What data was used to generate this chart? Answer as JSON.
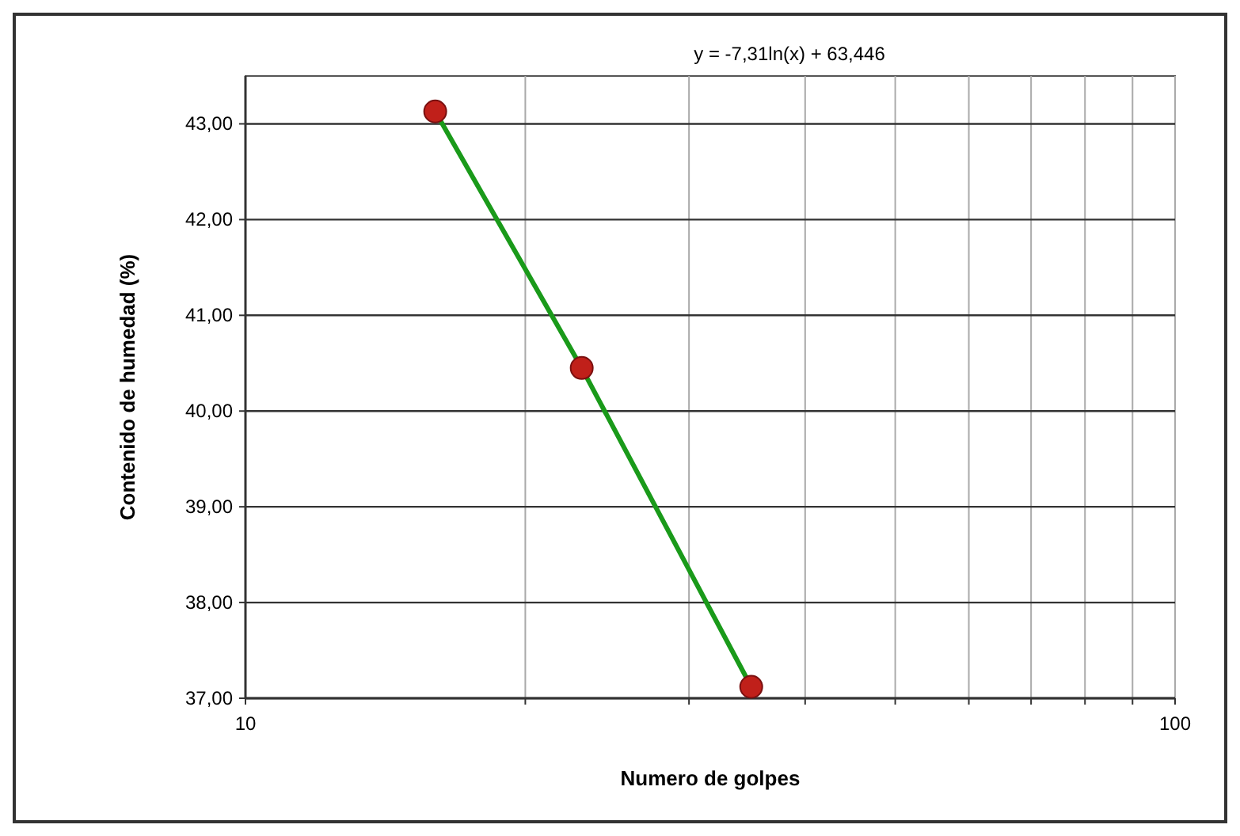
{
  "chart_data": {
    "type": "line",
    "xlabel": "Numero de golpes",
    "ylabel": "Contenido de humedad (%)",
    "log": "x",
    "series": [
      {
        "color": "#1a9a1a",
        "colors": [
          "#c0201a",
          "#c0201a",
          "#c0201a"
        ],
        "values": [
          43.13,
          40.45,
          37.12
        ],
        "x": [
          16,
          23,
          35
        ]
      }
    ],
    "annotations": [
      "y = -7,31ln(x) + 63,446"
    ],
    "xlim": [
      10,
      100
    ],
    "xticks": [
      {
        "value": 10,
        "label": "10"
      },
      {
        "value": 20,
        "label": null
      },
      {
        "value": 30,
        "label": null
      },
      {
        "value": 40,
        "label": null
      },
      {
        "value": 50,
        "label": null
      },
      {
        "value": 60,
        "label": null
      },
      {
        "value": 70,
        "label": null
      },
      {
        "value": 80,
        "label": null
      },
      {
        "value": 90,
        "label": null
      },
      {
        "value": 100,
        "label": "100"
      }
    ],
    "ylim": [
      37,
      43.5
    ],
    "yticks": [
      {
        "value": 37,
        "label": "37,00"
      },
      {
        "value": 38,
        "label": "38,00"
      },
      {
        "value": 39,
        "label": "39,00"
      },
      {
        "value": 40,
        "label": "40,00"
      },
      {
        "value": 41,
        "label": "41,00"
      },
      {
        "value": 42,
        "label": "42,00"
      },
      {
        "value": 43,
        "label": "43,00"
      }
    ],
    "grid": true,
    "marker": "circle",
    "line_style": "solid"
  }
}
